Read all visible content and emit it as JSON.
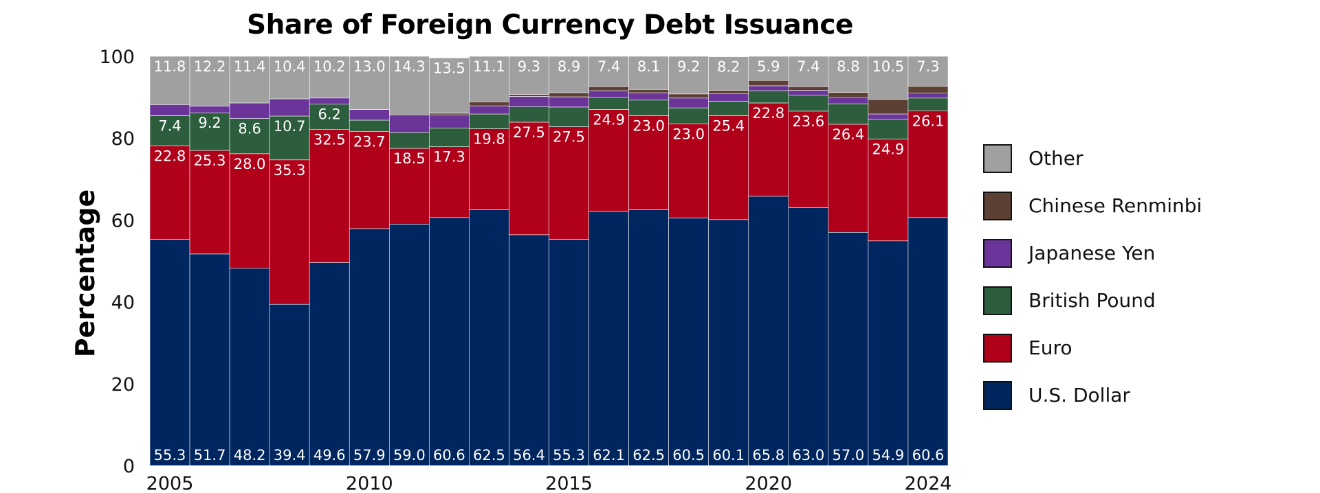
{
  "chart_data": {
    "type": "bar",
    "stacked": true,
    "title": "Share of Foreign Currency Debt Issuance",
    "ylabel": "Percentage",
    "xlabel": "",
    "ylim": [
      0,
      100
    ],
    "yticks": [
      0,
      20,
      40,
      60,
      80,
      100
    ],
    "xtick_labels": [
      "2005",
      "2010",
      "2015",
      "2020",
      "2024"
    ],
    "xtick_years": [
      2005,
      2010,
      2015,
      2020,
      2024
    ],
    "categories": [
      2005,
      2006,
      2007,
      2008,
      2009,
      2010,
      2011,
      2012,
      2013,
      2014,
      2015,
      2016,
      2017,
      2018,
      2019,
      2020,
      2021,
      2022,
      2023,
      2024
    ],
    "legend_position": "right",
    "series": [
      {
        "name": "U.S. Dollar",
        "color": "#002660",
        "values": [
          55.3,
          51.7,
          48.2,
          39.4,
          49.6,
          57.9,
          59.0,
          60.6,
          62.5,
          56.4,
          55.3,
          62.1,
          62.5,
          60.5,
          60.1,
          65.8,
          63.0,
          57.0,
          54.9,
          60.6
        ],
        "labels": [
          "55.3",
          "51.7",
          "48.2",
          "39.4",
          "49.6",
          "57.9",
          "59.0",
          "60.6",
          "62.5",
          "56.4",
          "55.3",
          "62.1",
          "62.5",
          "60.5",
          "60.1",
          "65.8",
          "63.0",
          "57.0",
          "54.9",
          "60.6"
        ]
      },
      {
        "name": "Euro",
        "color": "#B0001A",
        "values": [
          22.8,
          25.3,
          28.0,
          35.3,
          32.5,
          23.7,
          18.5,
          17.3,
          19.8,
          27.5,
          27.5,
          24.9,
          23.0,
          23.0,
          25.4,
          22.8,
          23.6,
          26.4,
          24.9,
          26.1
        ],
        "labels": [
          "22.8",
          "25.3",
          "28.0",
          "35.3",
          "32.5",
          "23.7",
          "18.5",
          "17.3",
          "19.8",
          "27.5",
          "27.5",
          "24.9",
          "23.0",
          "23.0",
          "25.4",
          "22.8",
          "23.6",
          "26.4",
          "24.9",
          "26.1"
        ]
      },
      {
        "name": "British Pound",
        "color": "#2C5E3E",
        "values": [
          7.4,
          9.2,
          8.6,
          10.7,
          6.2,
          2.8,
          3.9,
          4.6,
          3.6,
          3.8,
          4.8,
          3.0,
          3.8,
          3.9,
          3.5,
          3.0,
          3.9,
          5.0,
          4.8,
          3.1
        ],
        "labels": [
          "7.4",
          "9.2",
          "8.6",
          "10.7",
          "6.2",
          "",
          "",
          "",
          "",
          "",
          "",
          "",
          "",
          "",
          "",
          "",
          "",
          "",
          "",
          ""
        ]
      },
      {
        "name": "Japanese Yen",
        "color": "#6A3499",
        "values": [
          2.7,
          1.6,
          3.8,
          4.2,
          1.5,
          2.6,
          4.3,
          3.2,
          2.0,
          2.5,
          2.5,
          1.6,
          1.8,
          2.4,
          1.9,
          1.2,
          1.2,
          1.5,
          1.3,
          1.2
        ],
        "labels": [
          "",
          "",
          "",
          "",
          "",
          "",
          "",
          "",
          "",
          "",
          "",
          "",
          "",
          "",
          "",
          "",
          "",
          "",
          "",
          ""
        ]
      },
      {
        "name": "Chinese Renminbi",
        "color": "#5C4033",
        "values": [
          0,
          0,
          0,
          0,
          0,
          0,
          0,
          0.4,
          1.0,
          0.5,
          1.0,
          1.0,
          0.8,
          1.0,
          0.8,
          1.3,
          0.9,
          1.3,
          3.6,
          1.7
        ],
        "labels": [
          "",
          "",
          "",
          "",
          "",
          "",
          "",
          "",
          "",
          "",
          "",
          "",
          "",
          "",
          "",
          "",
          "",
          "",
          "",
          ""
        ]
      },
      {
        "name": "Other",
        "color": "#A0A0A0",
        "values": [
          11.8,
          12.2,
          11.4,
          10.4,
          10.2,
          13.0,
          14.3,
          13.5,
          11.1,
          9.3,
          8.9,
          7.4,
          8.1,
          9.2,
          8.2,
          5.9,
          7.4,
          8.8,
          10.5,
          7.3
        ],
        "labels": [
          "11.8",
          "12.2",
          "11.4",
          "10.4",
          "10.2",
          "13.0",
          "14.3",
          "13.5",
          "11.1",
          "9.3",
          "8.9",
          "7.4",
          "8.1",
          "9.2",
          "8.2",
          "5.9",
          "7.4",
          "8.8",
          "10.5",
          "7.3"
        ]
      }
    ],
    "legend_order": [
      "Other",
      "Chinese Renminbi",
      "Japanese Yen",
      "British Pound",
      "Euro",
      "U.S. Dollar"
    ]
  }
}
